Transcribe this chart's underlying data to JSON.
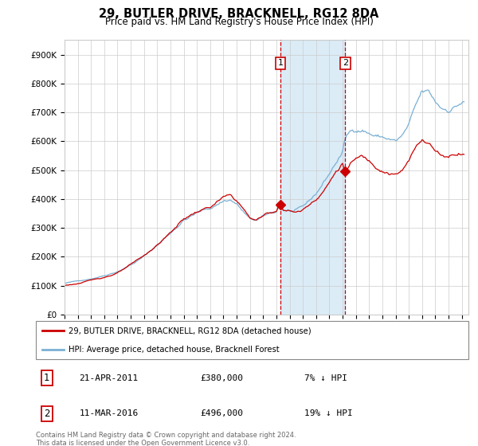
{
  "title": "29, BUTLER DRIVE, BRACKNELL, RG12 8DA",
  "subtitle": "Price paid vs. HM Land Registry's House Price Index (HPI)",
  "ylabel_ticks": [
    "£0",
    "£100K",
    "£200K",
    "£300K",
    "£400K",
    "£500K",
    "£600K",
    "£700K",
    "£800K",
    "£900K"
  ],
  "ytick_vals": [
    0,
    100000,
    200000,
    300000,
    400000,
    500000,
    600000,
    700000,
    800000,
    900000
  ],
  "ylim": [
    0,
    950000
  ],
  "xlim_start": 1995.0,
  "xlim_end": 2025.5,
  "red_line_label": "29, BUTLER DRIVE, BRACKNELL, RG12 8DA (detached house)",
  "blue_line_label": "HPI: Average price, detached house, Bracknell Forest",
  "sale1_label": "1",
  "sale1_date": "21-APR-2011",
  "sale1_price": "£380,000",
  "sale1_hpi": "7% ↓ HPI",
  "sale1_year": 2011.3,
  "sale1_value": 380000,
  "sale2_label": "2",
  "sale2_date": "11-MAR-2016",
  "sale2_price": "£496,000",
  "sale2_hpi": "19% ↓ HPI",
  "sale2_year": 2016.2,
  "sale2_value": 496000,
  "shade_color": "#cce5f5",
  "red_color": "#cc0000",
  "blue_color": "#7ab0d4",
  "footer": "Contains HM Land Registry data © Crown copyright and database right 2024.\nThis data is licensed under the Open Government Licence v3.0."
}
